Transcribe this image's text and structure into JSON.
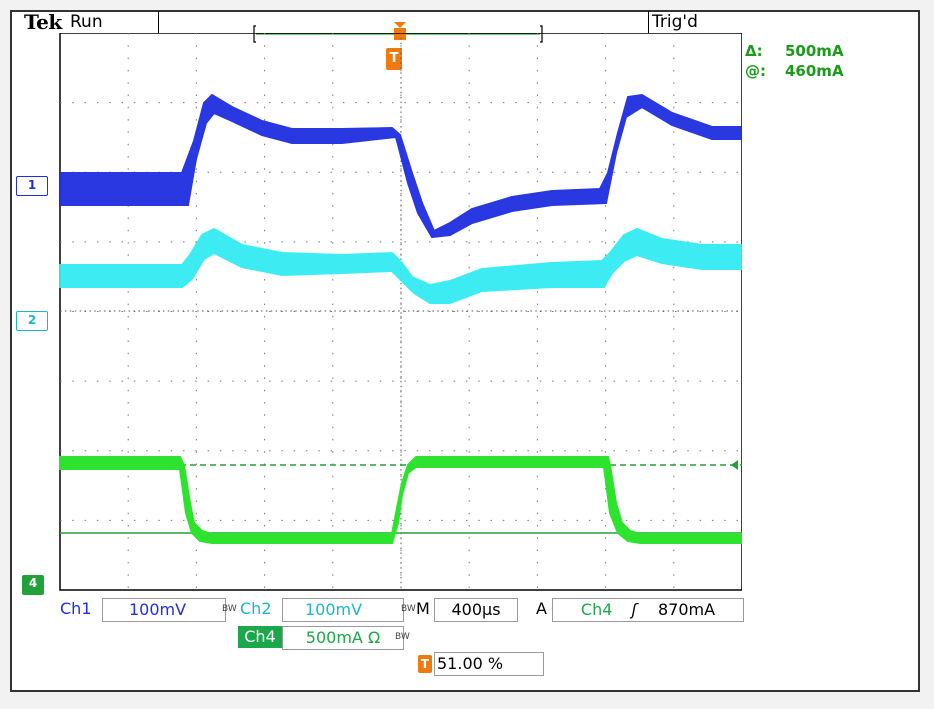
{
  "header": {
    "brand": "Tek",
    "run_state": "Run",
    "trigger_state": "Trig'd"
  },
  "cursor_readout": {
    "delta_symbol": "Δ:",
    "delta_value": "500mA",
    "at_symbol": "@:",
    "at_value": "460mA"
  },
  "channel_markers": {
    "ch1": "1",
    "ch2": "2",
    "ch4": "4"
  },
  "trigger_marker": "T",
  "status": {
    "ch1_label": "Ch1",
    "ch1_scale": "100mV",
    "ch2_label": "Ch2",
    "ch2_scale": "100mV",
    "bw_mark": "BW",
    "timebase_prefix": "M",
    "timebase": "400µs",
    "trigger_mode": "A",
    "trigger_source": "Ch4",
    "trigger_slope": "ʃ",
    "trigger_level": "870mA",
    "ch4_label": "Ch4",
    "ch4_scale": "500mA Ω",
    "trigger_position": "51.00 %"
  },
  "colors": {
    "ch1": "#1e2ee0",
    "ch2": "#33ebf2",
    "ch4": "#2ee32e",
    "trigger": "#f07a10",
    "readout": "#1a9c1a"
  }
}
